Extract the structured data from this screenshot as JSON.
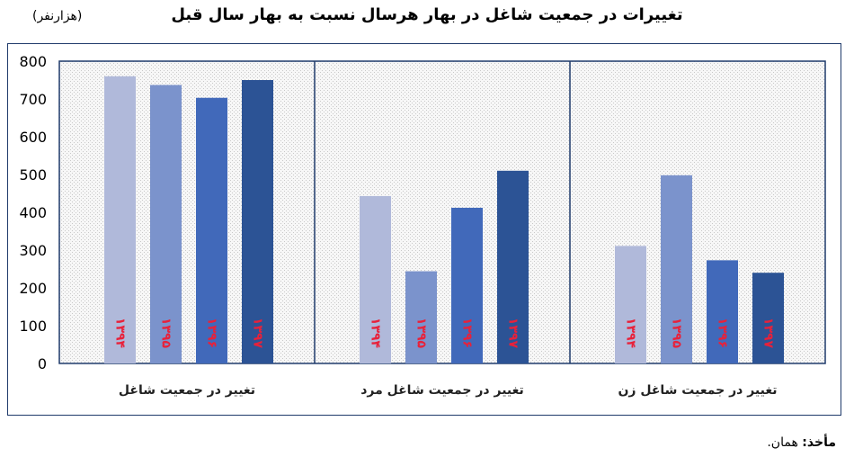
{
  "header": {
    "title": "تغییرات در جمعیت شاغل در بهار هرسال نسبت به بهار سال قبل",
    "unit": "(هزارنفر)"
  },
  "footer": {
    "source_label": "مأخذ:",
    "source_value": "همان."
  },
  "colors": [
    "#b0b9da",
    "#7b93cc",
    "#4169ba",
    "#2c5395"
  ],
  "chart_data": {
    "type": "bar",
    "title": "تغییرات در جمعیت شاغل در بهار هرسال نسبت به بهار سال قبل",
    "ylabel": "(هزارنفر)",
    "ylim": [
      0,
      800
    ],
    "yticks": [
      0,
      100,
      200,
      300,
      400,
      500,
      600,
      700,
      800
    ],
    "groups": [
      {
        "label": "تغییر در جمعیت شاغل",
        "values": [
          760,
          737,
          703,
          750
        ]
      },
      {
        "label": "تغییر در جمعیت شاغل مرد",
        "values": [
          443,
          244,
          412,
          510
        ]
      },
      {
        "label": "تغییر در جمعیت شاغل زن",
        "values": [
          311,
          498,
          273,
          240
        ]
      }
    ],
    "bar_labels": [
      "۱۳۹۴",
      "۱۳۹۵",
      "۱۳۹۶",
      "۱۳۹۷"
    ],
    "grid": false
  }
}
